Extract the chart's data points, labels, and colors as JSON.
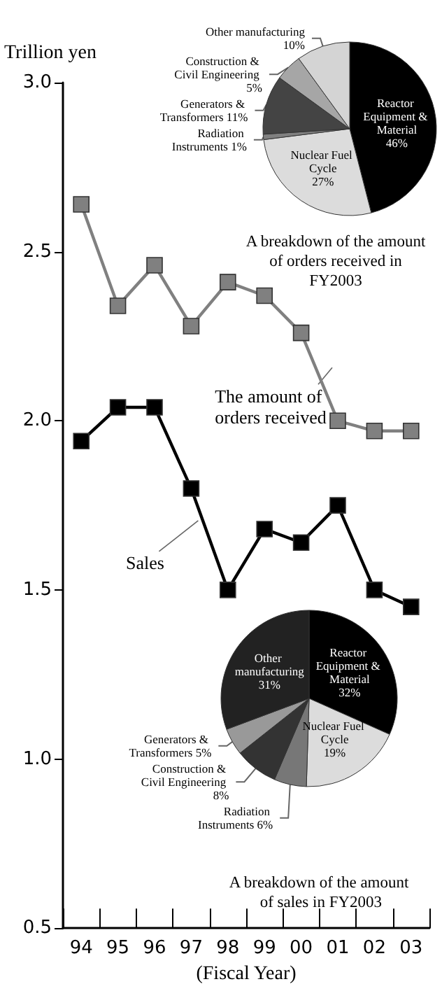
{
  "chart_data": [
    {
      "type": "line",
      "ylabel": "Trillion yen",
      "xlabel": "(Fiscal Year)",
      "categories": [
        "94",
        "95",
        "96",
        "97",
        "98",
        "99",
        "00",
        "01",
        "02",
        "03"
      ],
      "series": [
        {
          "name": "The amount of orders received",
          "color": "#808080",
          "values": [
            2.64,
            2.34,
            2.46,
            2.28,
            2.41,
            2.37,
            2.26,
            2.0,
            1.97,
            1.97
          ]
        },
        {
          "name": "Sales",
          "color": "#000000",
          "values": [
            1.94,
            2.04,
            2.04,
            1.8,
            1.5,
            1.68,
            1.64,
            1.75,
            1.5,
            1.45
          ]
        }
      ],
      "ylim": [
        0.5,
        3.0
      ],
      "yticks": [
        {
          "value": 0.5,
          "label": "0.5"
        },
        {
          "value": 1.0,
          "label": "1.0"
        },
        {
          "value": 1.5,
          "label": "1.5"
        },
        {
          "value": 2.0,
          "label": "2.0"
        },
        {
          "value": 2.5,
          "label": "2.5"
        },
        {
          "value": 3.0,
          "label": "3.0"
        }
      ],
      "marker": "square",
      "grid": false,
      "legend": false
    },
    {
      "type": "pie",
      "title": "A breakdown of the amount of orders received in FY2003",
      "categories": [
        "Reactor Equipment & Material",
        "Nuclear Fuel Cycle",
        "Radiation Instruments",
        "Generators & Transformers",
        "Construction & Civil Engineering",
        "Other manufacturing"
      ],
      "values": [
        46,
        27,
        1,
        11,
        5,
        10
      ],
      "value_labels": [
        "46%",
        "27%",
        "1%",
        "11%",
        "5%",
        "10%"
      ],
      "colors": [
        "#000000",
        "#dcdcdc",
        "#808080",
        "#444444",
        "#a6a6a6",
        "#d4d4d4"
      ]
    },
    {
      "type": "pie",
      "title": "A breakdown of the amount of sales in FY2003",
      "categories": [
        "Reactor Equipment & Material",
        "Nuclear Fuel Cycle",
        "Radiation Instruments",
        "Construction & Civil Engineering",
        "Generators & Transformers",
        "Other manufacturing"
      ],
      "values": [
        32,
        19,
        6,
        8,
        5,
        31
      ],
      "value_labels": [
        "32%",
        "19%",
        "6%",
        "8%",
        "5%",
        "31%"
      ],
      "colors": [
        "#000000",
        "#dcdcdc",
        "#777777",
        "#333333",
        "#999999",
        "#222222"
      ]
    }
  ]
}
